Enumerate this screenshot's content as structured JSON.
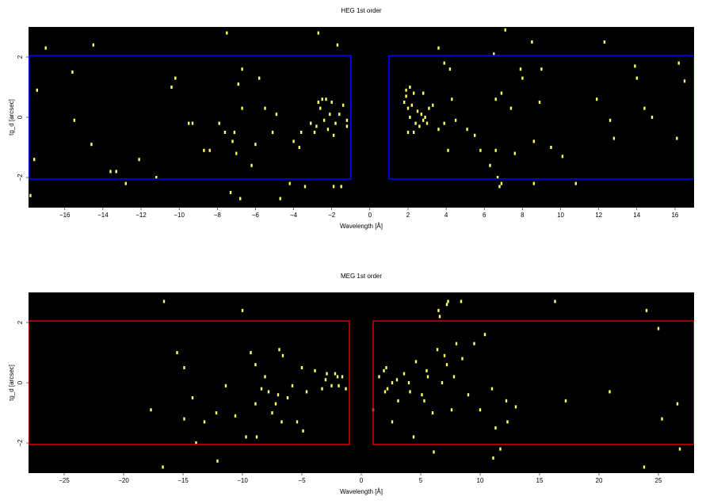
{
  "chart_data": [
    {
      "type": "scatter",
      "title": "HEG 1st order",
      "xlabel": "Wavelength [Å]",
      "ylabel": "tg_d [arcsec]",
      "xlim": [
        -17.9,
        17.0
      ],
      "ylim": [
        -3.0,
        3.0
      ],
      "grid": false,
      "background": "#000000",
      "point_color": "#ffff66",
      "region_color": "#0000ff",
      "xticks": [
        -16,
        -14,
        -12,
        -10,
        -8,
        -6,
        -4,
        -2,
        0,
        2,
        4,
        6,
        8,
        10,
        12,
        14,
        16
      ],
      "yticks": [
        -2,
        0,
        2
      ],
      "regions": [
        {
          "x": [
            -17.9,
            -1.0
          ],
          "y": [
            -2.05,
            2.05
          ]
        },
        {
          "x": [
            1.0,
            17.0
          ],
          "y": [
            -2.05,
            2.05
          ]
        }
      ],
      "points": [
        [
          -17.45,
          0.9
        ],
        [
          -15.6,
          1.5
        ],
        [
          -15.5,
          -0.1
        ],
        [
          -14.6,
          -0.9
        ],
        [
          -13.6,
          -1.8
        ],
        [
          -13.3,
          -1.8
        ],
        [
          -12.8,
          -2.2
        ],
        [
          -12.1,
          -1.4
        ],
        [
          -11.2,
          -2.0
        ],
        [
          -10.4,
          1.0
        ],
        [
          -9.5,
          -0.2
        ],
        [
          -9.3,
          -0.2
        ],
        [
          -8.7,
          -1.1
        ],
        [
          -8.4,
          -1.1
        ],
        [
          -7.9,
          -0.2
        ],
        [
          -7.6,
          -0.5
        ],
        [
          -7.2,
          -0.8
        ],
        [
          -7.1,
          -0.5
        ],
        [
          -7.0,
          -1.2
        ],
        [
          -6.8,
          -2.7
        ],
        [
          -6.7,
          0.3
        ],
        [
          -6.9,
          1.1
        ],
        [
          -6.2,
          -1.6
        ],
        [
          -6.0,
          -0.9
        ],
        [
          -5.5,
          0.3
        ],
        [
          -5.1,
          -0.5
        ],
        [
          -4.7,
          -2.7
        ],
        [
          -4.2,
          -2.2
        ],
        [
          -4.0,
          -0.8
        ],
        [
          -3.6,
          -0.5
        ],
        [
          -3.4,
          -2.3
        ],
        [
          -3.1,
          -0.2
        ],
        [
          -2.9,
          -0.5
        ],
        [
          -2.6,
          0.3
        ],
        [
          -2.4,
          -0.1
        ],
        [
          -2.2,
          -0.4
        ],
        [
          -2.0,
          0.5
        ],
        [
          -1.8,
          -0.2
        ],
        [
          -1.6,
          0.1
        ],
        [
          -1.4,
          0.4
        ],
        [
          -1.2,
          -0.3
        ],
        [
          -2.7,
          0.5
        ],
        [
          -2.5,
          0.6
        ],
        [
          -2.3,
          0.6
        ],
        [
          -2.1,
          0.1
        ],
        [
          -1.9,
          -0.6
        ],
        [
          -1.5,
          -2.3
        ],
        [
          -1.9,
          -2.3
        ],
        [
          -1.2,
          -0.1
        ],
        [
          -2.8,
          -0.3
        ],
        [
          -3.7,
          -1.0
        ],
        [
          -4.9,
          0.1
        ],
        [
          -1.7,
          2.4
        ],
        [
          -2.7,
          2.8
        ],
        [
          -7.5,
          2.8
        ],
        [
          -5.8,
          1.3
        ],
        [
          -6.7,
          1.6
        ],
        [
          -10.2,
          1.3
        ],
        [
          -17.6,
          -1.4
        ],
        [
          -17.8,
          -2.6
        ],
        [
          -17.0,
          2.3
        ],
        [
          -14.5,
          2.4
        ],
        [
          -7.3,
          -2.5
        ],
        [
          1.8,
          0.5
        ],
        [
          1.9,
          0.7
        ],
        [
          2.0,
          0.3
        ],
        [
          2.1,
          0.0
        ],
        [
          2.2,
          0.4
        ],
        [
          2.3,
          0.8
        ],
        [
          2.4,
          -0.2
        ],
        [
          2.5,
          0.2
        ],
        [
          2.6,
          -0.3
        ],
        [
          2.7,
          0.1
        ],
        [
          2.8,
          -0.1
        ],
        [
          2.9,
          0.0
        ],
        [
          3.0,
          -0.2
        ],
        [
          3.1,
          0.3
        ],
        [
          2.0,
          -0.5
        ],
        [
          2.3,
          -0.5
        ],
        [
          1.9,
          0.9
        ],
        [
          2.1,
          1.0
        ],
        [
          2.8,
          0.8
        ],
        [
          3.3,
          0.4
        ],
        [
          3.6,
          -0.4
        ],
        [
          4.3,
          0.6
        ],
        [
          4.2,
          1.6
        ],
        [
          3.9,
          -0.2
        ],
        [
          4.5,
          -0.1
        ],
        [
          5.1,
          -0.4
        ],
        [
          5.5,
          -0.6
        ],
        [
          6.3,
          -1.6
        ],
        [
          6.5,
          2.1
        ],
        [
          6.7,
          -2.0
        ],
        [
          6.6,
          0.6
        ],
        [
          6.9,
          0.8
        ],
        [
          7.1,
          2.9
        ],
        [
          7.4,
          0.3
        ],
        [
          7.6,
          -1.2
        ],
        [
          7.9,
          1.6
        ],
        [
          8.0,
          1.3
        ],
        [
          8.5,
          2.5
        ],
        [
          8.6,
          -0.8
        ],
        [
          8.6,
          -2.2
        ],
        [
          8.9,
          0.5
        ],
        [
          9.0,
          1.6
        ],
        [
          9.5,
          -1.0
        ],
        [
          10.1,
          -1.3
        ],
        [
          11.9,
          0.6
        ],
        [
          12.6,
          -0.1
        ],
        [
          12.8,
          -0.7
        ],
        [
          13.9,
          1.7
        ],
        [
          14.0,
          1.3
        ],
        [
          14.4,
          0.3
        ],
        [
          14.8,
          0.0
        ],
        [
          6.8,
          -2.3
        ],
        [
          6.9,
          -2.2
        ],
        [
          10.8,
          -2.2
        ],
        [
          12.3,
          2.5
        ],
        [
          16.1,
          -0.7
        ],
        [
          16.5,
          1.2
        ],
        [
          16.2,
          1.8
        ],
        [
          6.6,
          -1.1
        ],
        [
          5.8,
          -1.1
        ],
        [
          3.6,
          2.3
        ],
        [
          3.9,
          1.8
        ],
        [
          4.1,
          -1.1
        ]
      ]
    },
    {
      "type": "scatter",
      "title": "MEG 1st order",
      "xlabel": "Wavelength [Å]",
      "ylabel": "tg_d [arcsec]",
      "xlim": [
        -28.0,
        28.0
      ],
      "ylim": [
        -3.0,
        3.0
      ],
      "grid": false,
      "background": "#000000",
      "point_color": "#ffff66",
      "region_color": "#cc0000",
      "xticks": [
        -25,
        -20,
        -15,
        -10,
        -5,
        0,
        5,
        10,
        15,
        20,
        25
      ],
      "yticks": [
        -2,
        0,
        2
      ],
      "regions": [
        {
          "x": [
            -28.0,
            -1.0
          ],
          "y": [
            -2.05,
            2.05
          ]
        },
        {
          "x": [
            1.0,
            28.0
          ],
          "y": [
            -2.05,
            2.05
          ]
        }
      ],
      "points": [
        [
          -16.6,
          2.7
        ],
        [
          -10.0,
          2.4
        ],
        [
          -17.7,
          -0.9
        ],
        [
          -16.7,
          -2.8
        ],
        [
          -15.5,
          1.0
        ],
        [
          -14.9,
          -1.2
        ],
        [
          -14.2,
          -0.5
        ],
        [
          -13.2,
          -1.3
        ],
        [
          -12.2,
          -1.0
        ],
        [
          -12.1,
          -2.6
        ],
        [
          -11.4,
          -0.1
        ],
        [
          -10.6,
          -1.1
        ],
        [
          -9.7,
          -1.8
        ],
        [
          -9.3,
          1.0
        ],
        [
          -8.9,
          -0.7
        ],
        [
          -8.4,
          -0.2
        ],
        [
          -8.1,
          0.2
        ],
        [
          -7.8,
          -0.3
        ],
        [
          -7.5,
          -1.0
        ],
        [
          -7.2,
          -0.7
        ],
        [
          -6.9,
          1.1
        ],
        [
          -6.6,
          0.9
        ],
        [
          -6.2,
          -0.5
        ],
        [
          -5.8,
          -0.1
        ],
        [
          -5.4,
          -1.3
        ],
        [
          -5.0,
          0.5
        ],
        [
          -4.6,
          -0.3
        ],
        [
          -3.9,
          0.4
        ],
        [
          -3.3,
          -0.2
        ],
        [
          -2.9,
          0.3
        ],
        [
          -2.5,
          -0.1
        ],
        [
          -2.2,
          0.3
        ],
        [
          -1.9,
          -0.1
        ],
        [
          -1.6,
          0.2
        ],
        [
          -1.3,
          -0.2
        ],
        [
          -3.0,
          0.1
        ],
        [
          -2.0,
          0.2
        ],
        [
          -8.9,
          0.6
        ],
        [
          -6.7,
          -1.3
        ],
        [
          -4.9,
          -1.6
        ],
        [
          -7.0,
          -0.4
        ],
        [
          -8.8,
          -1.8
        ],
        [
          -13.9,
          -2.0
        ],
        [
          -14.9,
          0.5
        ],
        [
          1.0,
          -0.9
        ],
        [
          1.5,
          0.2
        ],
        [
          1.9,
          0.4
        ],
        [
          2.2,
          -0.2
        ],
        [
          2.6,
          0.0
        ],
        [
          3.1,
          -0.6
        ],
        [
          3.6,
          0.3
        ],
        [
          4.1,
          -0.3
        ],
        [
          4.6,
          0.7
        ],
        [
          5.1,
          -0.4
        ],
        [
          5.5,
          0.4
        ],
        [
          6.0,
          -1.0
        ],
        [
          6.4,
          1.1
        ],
        [
          6.8,
          0.0
        ],
        [
          7.2,
          0.6
        ],
        [
          7.6,
          -0.9
        ],
        [
          8.0,
          1.3
        ],
        [
          8.5,
          0.8
        ],
        [
          9.0,
          -0.4
        ],
        [
          9.5,
          1.3
        ],
        [
          10.0,
          -0.9
        ],
        [
          10.4,
          1.6
        ],
        [
          11.0,
          -0.2
        ],
        [
          11.3,
          -1.5
        ],
        [
          11.7,
          -2.2
        ],
        [
          12.2,
          -0.6
        ],
        [
          6.1,
          -2.3
        ],
        [
          6.6,
          2.2
        ],
        [
          7.2,
          2.6
        ],
        [
          8.4,
          2.7
        ],
        [
          16.3,
          2.7
        ],
        [
          17.2,
          -0.6
        ],
        [
          20.9,
          -0.3
        ],
        [
          23.8,
          -2.8
        ],
        [
          24.0,
          2.4
        ],
        [
          25.0,
          1.8
        ],
        [
          25.3,
          -1.2
        ],
        [
          26.6,
          -0.7
        ],
        [
          26.8,
          -2.2
        ],
        [
          11.1,
          -2.5
        ],
        [
          4.4,
          -1.8
        ],
        [
          2.6,
          -1.3
        ],
        [
          7.8,
          0.2
        ],
        [
          5.3,
          -0.6
        ],
        [
          3.0,
          0.1
        ],
        [
          4.0,
          0.0
        ],
        [
          2.0,
          -0.3
        ],
        [
          13.0,
          -0.8
        ],
        [
          6.5,
          2.4
        ],
        [
          7.3,
          2.7
        ],
        [
          12.3,
          -1.3
        ],
        [
          2.1,
          0.5
        ],
        [
          5.6,
          0.2
        ],
        [
          7.0,
          0.9
        ]
      ]
    }
  ]
}
